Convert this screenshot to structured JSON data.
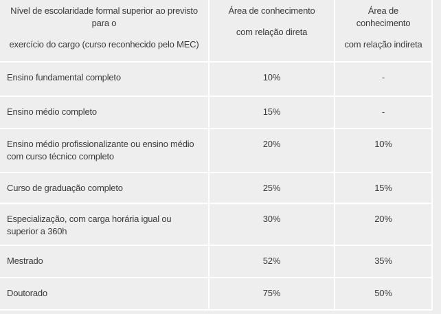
{
  "chart_data": {
    "type": "table",
    "columns": [
      "Nível de escolaridade formal superior ao previsto para o exercício do cargo (curso reconhecido pelo MEC)",
      "Área de conhecimento com relação direta",
      "Área de conhecimento com relação indireta"
    ],
    "rows": [
      {
        "label": "Ensino fundamental completo",
        "direta": "10%",
        "indireta": "-"
      },
      {
        "label": "Ensino médio completo",
        "direta": "15%",
        "indireta": "-"
      },
      {
        "label": "Ensino médio profissionalizante ou ensino médio com curso técnico completo",
        "direta": "20%",
        "indireta": "10%"
      },
      {
        "label": "Curso de graduação completo",
        "direta": "25%",
        "indireta": "15%"
      },
      {
        "label": "Especialização, com carga horária igual ou superior a 360h",
        "direta": "30%",
        "indireta": "20%"
      },
      {
        "label": "Mestrado",
        "direta": "52%",
        "indireta": "35%"
      },
      {
        "label": "Doutorado",
        "direta": "75%",
        "indireta": "50%"
      }
    ]
  },
  "header": {
    "col1_p1": "Nível de escolaridade formal superior ao previsto para o",
    "col1_p2": "exercício do cargo (curso reconhecido pelo MEC)",
    "col2_p1": "Área de conhecimento",
    "col2_p2": "com relação direta",
    "col3_p1": "Área de conhecimento",
    "col3_p2": "com relação indireta"
  },
  "colors": {
    "background": "#eeeeee",
    "row_separator": "#ffffff",
    "text": "#3b3b3b"
  }
}
